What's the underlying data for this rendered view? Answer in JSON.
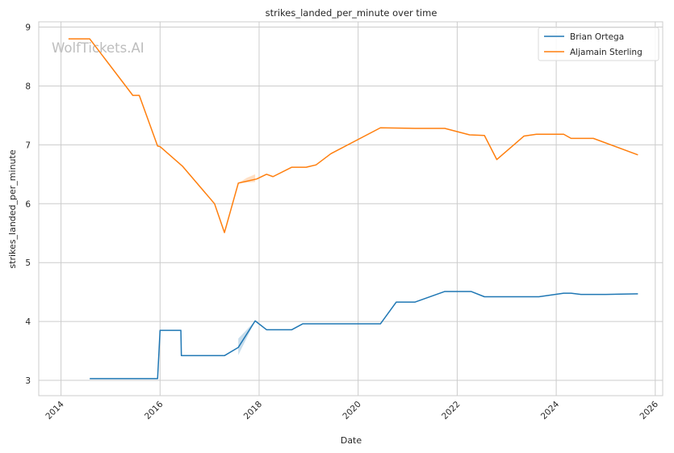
{
  "chart_data": {
    "type": "line",
    "title": "strikes_landed_per_minute over time",
    "xlabel": "Date",
    "ylabel": "strikes_landed_per_minute",
    "watermark": "WolfTickets.AI",
    "xlim": [
      2013.55,
      2026.15
    ],
    "ylim": [
      2.74,
      9.09
    ],
    "x_ticks": [
      2014,
      2016,
      2018,
      2020,
      2022,
      2024,
      2026
    ],
    "x_tick_labels": [
      "2014",
      "2016",
      "2018",
      "2020",
      "2022",
      "2024",
      "2026"
    ],
    "y_ticks": [
      3,
      4,
      5,
      6,
      7,
      8,
      9
    ],
    "y_tick_labels": [
      "3",
      "4",
      "5",
      "6",
      "7",
      "8",
      "9"
    ],
    "grid": true,
    "legend_position": "top-right",
    "series": [
      {
        "name": "Brian Ortega",
        "color": "#1f77b4",
        "x": [
          2014.58,
          2015.95,
          2016.0,
          2016.42,
          2016.43,
          2017.3,
          2017.58,
          2017.92,
          2018.15,
          2018.66,
          2018.88,
          2019.15,
          2020.45,
          2020.77,
          2021.15,
          2021.75,
          2022.28,
          2022.55,
          2023.65,
          2024.15,
          2024.3,
          2024.5,
          2025.0,
          2025.65
        ],
        "y": [
          3.03,
          3.03,
          3.85,
          3.85,
          3.42,
          3.42,
          3.56,
          4.01,
          3.86,
          3.86,
          3.96,
          3.96,
          3.96,
          4.33,
          4.33,
          4.51,
          4.51,
          4.42,
          4.42,
          4.48,
          4.48,
          4.46,
          4.46,
          4.47
        ],
        "band": {
          "x": [
            2017.58,
            2017.75,
            2017.92
          ],
          "lower": [
            3.43,
            3.72,
            4.01
          ],
          "upper": [
            3.71,
            3.86,
            4.01
          ]
        }
      },
      {
        "name": "Aljamain Sterling",
        "color": "#ff7f0e",
        "x": [
          2014.15,
          2014.58,
          2015.45,
          2015.58,
          2015.95,
          2016.0,
          2016.45,
          2017.1,
          2017.3,
          2017.58,
          2017.95,
          2018.15,
          2018.28,
          2018.66,
          2018.95,
          2019.15,
          2019.45,
          2020.45,
          2021.15,
          2021.75,
          2022.25,
          2022.55,
          2022.8,
          2023.35,
          2023.6,
          2024.15,
          2024.3,
          2024.75,
          2025.65
        ],
        "y": [
          8.8,
          8.8,
          7.84,
          7.84,
          6.98,
          6.97,
          6.64,
          6.0,
          5.51,
          6.35,
          6.42,
          6.5,
          6.46,
          6.62,
          6.62,
          6.66,
          6.85,
          7.29,
          7.28,
          7.28,
          7.17,
          7.16,
          6.75,
          7.15,
          7.18,
          7.18,
          7.11,
          7.11,
          6.83
        ],
        "band": {
          "x": [
            2017.58,
            2017.75,
            2017.92
          ],
          "lower": [
            6.35,
            6.36,
            6.37
          ],
          "upper": [
            6.35,
            6.44,
            6.5
          ]
        }
      }
    ]
  }
}
